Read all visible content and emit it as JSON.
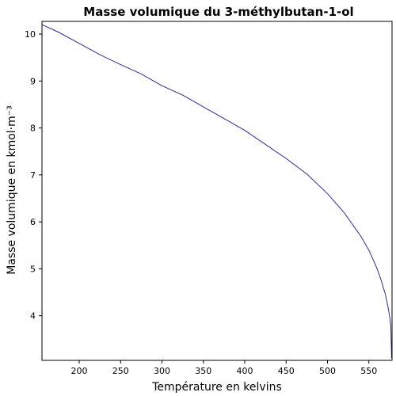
{
  "chart_data": {
    "type": "line",
    "title": "Masse volumique du 3-méthylbutan-1-ol",
    "xlabel": "Température en kelvins",
    "ylabel": "Masse volumique en kmol·m⁻³",
    "xlim": [
      155,
      578
    ],
    "ylim": [
      3.05,
      10.27
    ],
    "xticks": [
      200,
      250,
      300,
      350,
      400,
      450,
      500,
      550
    ],
    "yticks": [
      4,
      5,
      6,
      7,
      8,
      9,
      10
    ],
    "grid": false,
    "line_color": "#2b2b8f",
    "series": [
      {
        "x": [
          155.2,
          175,
          200,
          225,
          250,
          275,
          300,
          325,
          350,
          375,
          400,
          425,
          450,
          475,
          500,
          520,
          540,
          550,
          560,
          565,
          570,
          573,
          575,
          576.5,
          577.5
        ],
        "y": [
          10.2,
          10.04,
          9.8,
          9.56,
          9.35,
          9.15,
          8.9,
          8.7,
          8.45,
          8.2,
          7.95,
          7.65,
          7.35,
          7.02,
          6.6,
          6.2,
          5.7,
          5.4,
          5.0,
          4.75,
          4.45,
          4.2,
          4.0,
          3.8,
          3.1
        ]
      }
    ]
  }
}
